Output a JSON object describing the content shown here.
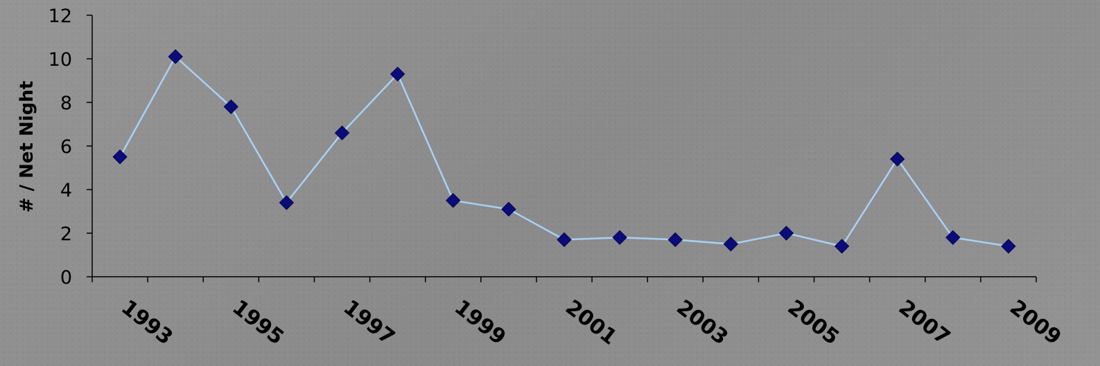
{
  "chart_data": {
    "type": "line",
    "title": "",
    "xlabel": "",
    "ylabel": "# / Net Night",
    "x": [
      1992.5,
      1993.5,
      1994.5,
      1995.5,
      1996.5,
      1997.5,
      1998.5,
      1999.5,
      2000.5,
      2001.5,
      2002.5,
      2003.5,
      2004.5,
      2005.5,
      2006.5,
      2007.5,
      2008.5
    ],
    "series": [
      {
        "values": [
          5.5,
          10.1,
          7.8,
          3.4,
          6.6,
          9.3,
          3.5,
          3.1,
          1.7,
          1.8,
          1.7,
          1.5,
          2.0,
          1.4,
          5.4,
          1.8,
          1.4
        ]
      }
    ],
    "x_ticks": [
      "1993",
      "1995",
      "1997",
      "1999",
      "2001",
      "2003",
      "2005",
      "2007",
      "2009"
    ],
    "y_ticks": [
      "0",
      "2",
      "4",
      "6",
      "8",
      "10",
      "12"
    ],
    "ylim": [
      0,
      12
    ],
    "line_color": "#a9d1f5",
    "marker_color": "#0b0b7a",
    "marker": "diamond",
    "grid": false,
    "legend": "none"
  }
}
